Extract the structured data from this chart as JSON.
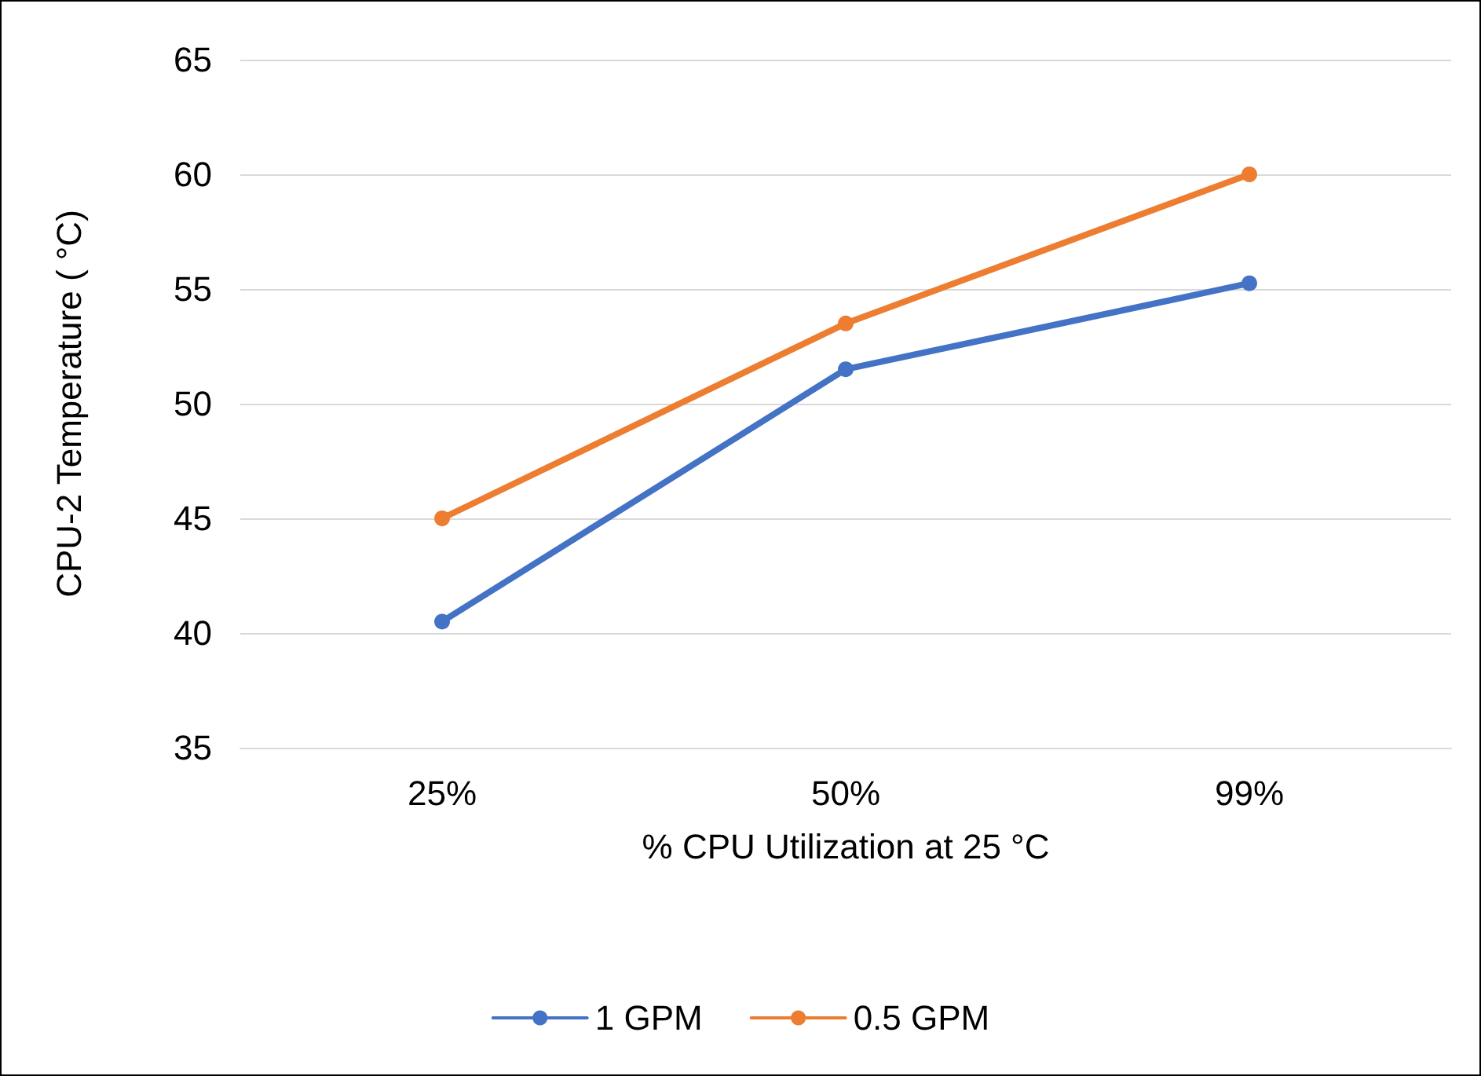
{
  "chart_data": {
    "type": "line",
    "xlabel": "% CPU Utilization at 25 °C",
    "ylabel": "CPU-2 Temperature ( °C)",
    "categories": [
      "25%",
      "50%",
      "99%"
    ],
    "series": [
      {
        "name": "1 GPM",
        "color": "#4472c4",
        "values": [
          40.5,
          51.5,
          55.25
        ]
      },
      {
        "name": "0.5 GPM",
        "color": "#ed7d31",
        "values": [
          45,
          53.5,
          60
        ]
      }
    ],
    "ylim": [
      35,
      65
    ],
    "yticks": [
      35,
      40,
      45,
      50,
      55,
      60,
      65
    ],
    "grid": "y",
    "legend": "bottom",
    "marker": "circle",
    "line_style": "solid"
  }
}
